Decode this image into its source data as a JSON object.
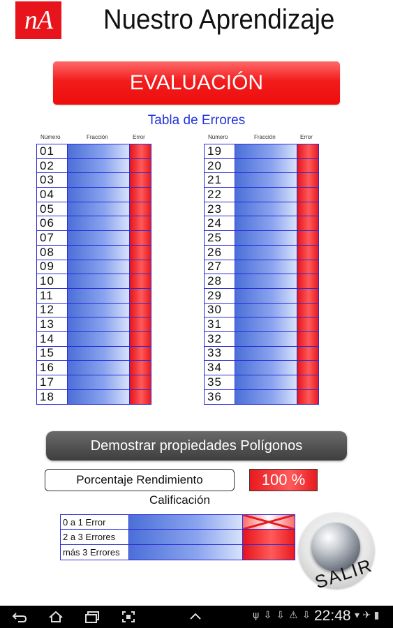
{
  "header": {
    "logo_text": "nA",
    "app_title": "Nuestro Aprendizaje"
  },
  "evaluation_banner": "EVALUACIÓN",
  "errors_table": {
    "title": "Tabla de Errores",
    "headers": {
      "number": "Número",
      "fraction": "Fracción",
      "error": "Error"
    },
    "left_rows": [
      "01",
      "02",
      "03",
      "04",
      "05",
      "06",
      "07",
      "08",
      "09",
      "10",
      "11",
      "12",
      "13",
      "14",
      "15",
      "16",
      "17",
      "18"
    ],
    "right_rows": [
      "19",
      "20",
      "21",
      "22",
      "23",
      "24",
      "25",
      "26",
      "27",
      "28",
      "29",
      "30",
      "31",
      "32",
      "33",
      "34",
      "35",
      "36"
    ]
  },
  "demo_button": "Demostrar propiedades Polígonos",
  "performance": {
    "label": "Porcentaje Rendimiento",
    "value": "100 %"
  },
  "grading": {
    "title": "Calificación",
    "rows": [
      {
        "label": "0  a 1 Error",
        "marked": true
      },
      {
        "label": "2 a 3 Errores",
        "marked": false
      },
      {
        "label": "más 3 Errores",
        "marked": false
      }
    ]
  },
  "exit_button": "SALIR",
  "status_bar": {
    "time": "22:48",
    "left_status_icons": "ψ ⇩ ⇩ ⚠ ⇩",
    "right_status_icons": "▾ ✈ ▮"
  },
  "nav_icons": [
    "back-icon",
    "home-icon",
    "recent-apps-icon",
    "screenshot-icon",
    "up-arrow-icon"
  ],
  "colors": {
    "accent_red": "#ee1111",
    "table_blue": "#2b2bd6",
    "title_blue": "#2233dd"
  }
}
